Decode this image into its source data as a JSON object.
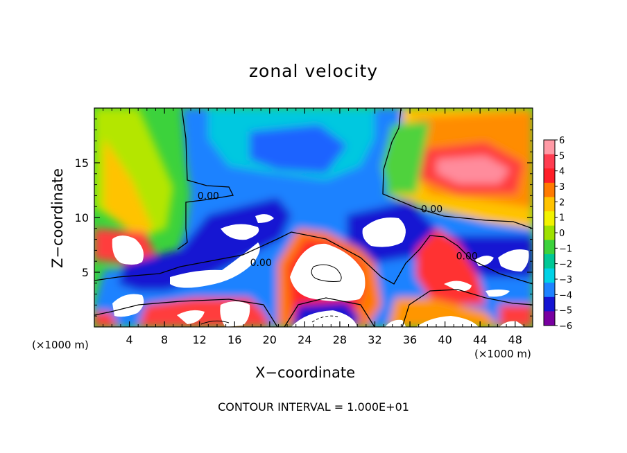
{
  "chart_data": {
    "type": "heatmap",
    "title": "zonal velocity",
    "xlabel": "X−coordinate",
    "ylabel": "Z−coordinate",
    "x_unit_label_left": "(×1000 m)",
    "x_unit_label_right": "(×1000 m)",
    "xlim": [
      0,
      50
    ],
    "ylim": [
      0,
      20
    ],
    "x_ticks": [
      "4",
      "8",
      "12",
      "16",
      "20",
      "24",
      "28",
      "32",
      "36",
      "40",
      "44",
      "48"
    ],
    "x_tick_values": [
      4,
      8,
      12,
      16,
      20,
      24,
      28,
      32,
      36,
      40,
      44,
      48
    ],
    "y_ticks": [
      "5",
      "10",
      "15"
    ],
    "y_tick_values": [
      5,
      10,
      15
    ],
    "colorbar": {
      "labels": [
        "6",
        "5",
        "4",
        "3",
        "2",
        "1",
        "0",
        "−1",
        "−2",
        "−3",
        "−4",
        "−5",
        "−6"
      ],
      "values": [
        6,
        5,
        4,
        3,
        2,
        1,
        0,
        -1,
        -2,
        -3,
        -4,
        -5,
        -6
      ],
      "colors": [
        "#ff9aa6",
        "#ff3c50",
        "#ff1e28",
        "#ff7a00",
        "#ffc300",
        "#f2f200",
        "#9ee100",
        "#3cd23c",
        "#00c896",
        "#00d2e6",
        "#1e82ff",
        "#1414d2",
        "#7800a0"
      ],
      "saturated_color": "#ffffff"
    },
    "contour_labels": [
      {
        "text": "0.00",
        "x": 13,
        "y": 12.0
      },
      {
        "text": "0.00",
        "x": 38.5,
        "y": 10.8
      },
      {
        "text": "0.00",
        "x": 19,
        "y": 5.9
      },
      {
        "text": "0.00",
        "x": 42.5,
        "y": 6.5
      }
    ],
    "contour_interval_text": "CONTOUR INTERVAL =  1.000E+01",
    "grid": false,
    "legend": "colorbar-right"
  }
}
